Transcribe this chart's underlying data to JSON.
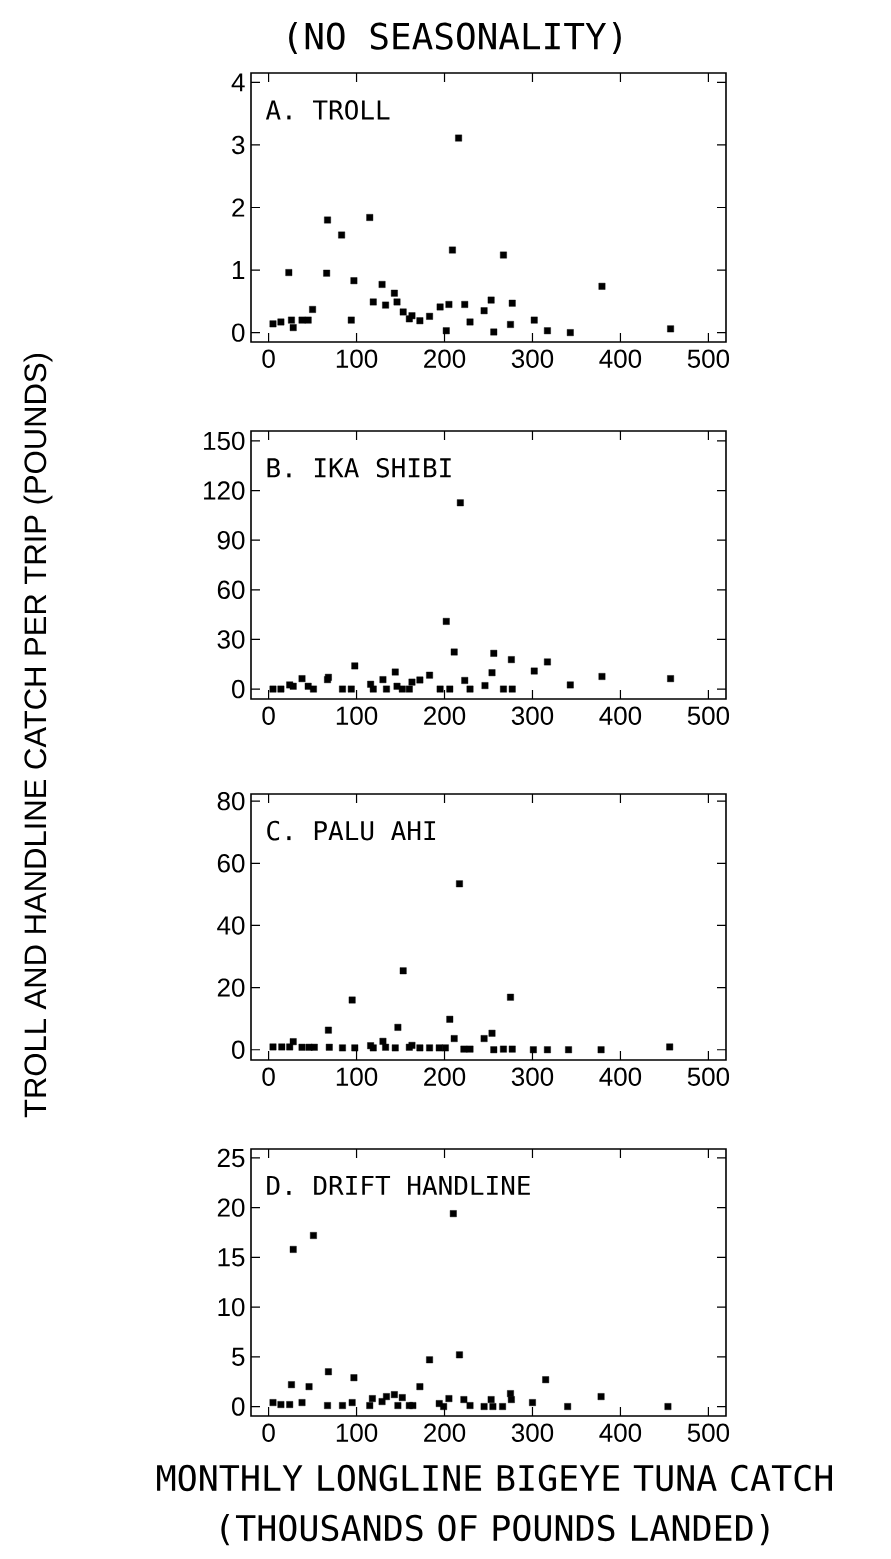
{
  "chart_data": [
    {
      "type": "scatter",
      "title": "(NO SEASONALITY)",
      "ylabel": "TROLL AND HANDLINE CATCH PER TRIP (POUNDS)",
      "annotations": [
        "A. TROLL"
      ],
      "marker": "square",
      "xlim": [
        -20,
        520
      ],
      "ylim": [
        -0.15,
        4.15
      ],
      "xticks": [
        0,
        100,
        200,
        300,
        400,
        500
      ],
      "yticks": [
        0,
        1,
        2,
        3,
        4
      ],
      "series": [
        {
          "color": "#000000",
          "x": [
            5,
            14,
            23,
            26,
            28,
            38,
            45,
            50,
            67,
            66,
            83,
            94,
            97,
            115,
            119,
            129,
            133,
            143,
            146,
            153,
            160,
            163,
            172,
            183,
            195,
            202,
            205,
            209,
            216,
            223,
            229,
            245,
            253,
            256,
            267,
            275,
            277,
            302,
            317,
            343,
            379,
            457
          ],
          "values": [
            0.14,
            0.17,
            0.96,
            0.2,
            0.08,
            0.2,
            0.2,
            0.37,
            1.8,
            0.95,
            1.56,
            0.2,
            0.83,
            1.84,
            0.49,
            0.77,
            0.44,
            0.63,
            0.49,
            0.33,
            0.22,
            0.27,
            0.19,
            0.26,
            0.41,
            0.03,
            0.45,
            1.32,
            3.11,
            0.45,
            0.17,
            0.35,
            0.52,
            0.01,
            1.24,
            0.13,
            0.47,
            0.2,
            0.03,
            0,
            0.74,
            0.06
          ]
        }
      ]
    },
    {
      "type": "scatter",
      "annotations": [
        "B. IKA SHIBI"
      ],
      "marker": "square",
      "xlim": [
        -20,
        520
      ],
      "ylim": [
        -6,
        156
      ],
      "xticks": [
        0,
        100,
        200,
        300,
        400,
        500
      ],
      "yticks": [
        0,
        30,
        60,
        90,
        120,
        150
      ],
      "series": [
        {
          "color": "#000000",
          "x": [
            5,
            14,
            24,
            28,
            38,
            45,
            51,
            68,
            67,
            84,
            94,
            98,
            116,
            119,
            130,
            134,
            144,
            146,
            152,
            160,
            163,
            172,
            183,
            195,
            202,
            206,
            211,
            218,
            223,
            229,
            246,
            254,
            256,
            267,
            276,
            277,
            302,
            317,
            343,
            379,
            457
          ],
          "values": [
            0,
            0,
            2.5,
            1.7,
            6.3,
            1.7,
            0,
            7.1,
            5.7,
            0,
            0,
            14,
            2.9,
            0,
            5.7,
            0,
            10.3,
            1.7,
            0,
            0,
            4.2,
            5.5,
            8.4,
            0,
            40.9,
            0,
            22.4,
            112.6,
            5.2,
            0,
            2.1,
            9.9,
            21.6,
            0,
            17.8,
            0,
            10.9,
            16.4,
            2.5,
            7.6,
            6.3
          ]
        }
      ]
    },
    {
      "type": "scatter",
      "annotations": [
        "C. PALU AHI"
      ],
      "marker": "square",
      "xlim": [
        -20,
        520
      ],
      "ylim": [
        -3.3,
        82.3
      ],
      "xticks": [
        0,
        100,
        200,
        300,
        400,
        500
      ],
      "yticks": [
        0,
        20,
        40,
        60,
        80
      ],
      "series": [
        {
          "color": "#000000",
          "x": [
            5,
            15,
            24,
            28,
            38,
            46,
            52,
            68,
            69,
            84,
            95,
            98,
            116,
            119,
            130,
            133,
            144,
            147,
            153,
            160,
            163,
            172,
            183,
            194,
            201,
            206,
            211,
            217,
            222,
            229,
            245,
            254,
            256,
            267,
            275,
            277,
            301,
            317,
            341,
            378,
            456
          ],
          "values": [
            0.9,
            0.9,
            0.9,
            2.6,
            0.8,
            0.8,
            0.8,
            6.3,
            0.8,
            0.6,
            16,
            0.6,
            1.3,
            0.6,
            2.7,
            0.8,
            0.6,
            7.2,
            25.4,
            0.8,
            1.4,
            0.6,
            0.6,
            0.6,
            0.6,
            9.8,
            3.6,
            53.4,
            0.2,
            0.2,
            3.6,
            5.3,
            0,
            0.2,
            16.9,
            0.2,
            0,
            0,
            0,
            0,
            0.9
          ]
        }
      ]
    },
    {
      "type": "scatter",
      "xlabel": "MONTHLY LONGLINE BIGEYE TUNA CATCH (THOUSANDS OF POUNDS LANDED)",
      "annotations": [
        "D. DRIFT HANDLINE"
      ],
      "marker": "square",
      "xlim": [
        -20,
        520
      ],
      "ylim": [
        -0.95,
        25.9
      ],
      "xticks": [
        0,
        100,
        200,
        300,
        400,
        500
      ],
      "yticks": [
        0,
        5,
        10,
        15,
        20,
        25
      ],
      "series": [
        {
          "color": "#000000",
          "x": [
            5,
            14,
            24,
            26,
            28,
            38,
            46,
            51,
            68,
            67,
            84,
            95,
            97,
            115,
            118,
            129,
            134,
            143,
            147,
            152,
            160,
            164,
            172,
            183,
            194,
            199,
            205,
            210,
            217,
            222,
            229,
            245,
            253,
            255,
            266,
            275,
            276,
            300,
            315,
            340,
            378,
            454
          ],
          "values": [
            0.4,
            0.2,
            0.2,
            2.2,
            15.8,
            0.4,
            2,
            17.2,
            3.5,
            0.1,
            0.1,
            0.4,
            2.9,
            0.1,
            0.8,
            0.5,
            1,
            1.2,
            0.1,
            0.9,
            0.1,
            0.1,
            2,
            4.7,
            0.3,
            0,
            0.8,
            19.4,
            5.2,
            0.7,
            0.1,
            0,
            0.7,
            0,
            0,
            1.3,
            0.7,
            0.4,
            2.7,
            0,
            1,
            0
          ]
        }
      ]
    }
  ]
}
